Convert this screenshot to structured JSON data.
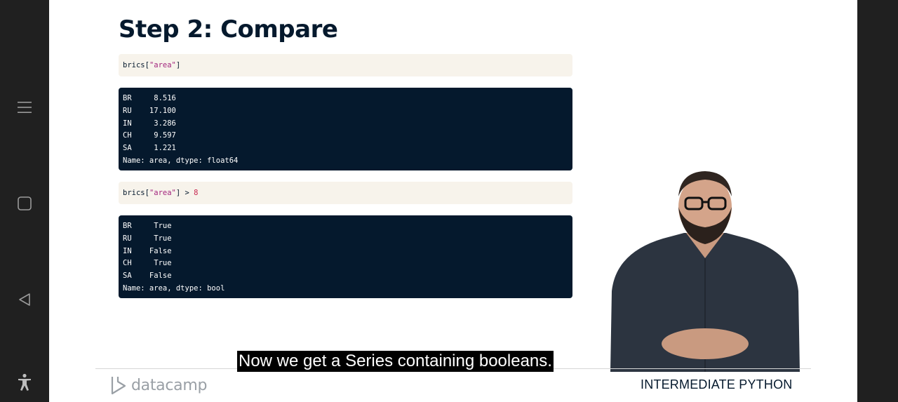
{
  "slide": {
    "title": "Step 2: Compare",
    "code_blocks": [
      {
        "input": {
          "prefix": "brics[",
          "string": "\"area\"",
          "suffix": "]"
        },
        "output_lines": [
          "BR     8.516",
          "RU    17.100",
          "IN     3.286",
          "CH     9.597",
          "SA     1.221",
          "Name: area, dtype: float64"
        ]
      },
      {
        "input": {
          "prefix": "brics[",
          "string": "\"area\"",
          "suffix": "] > ",
          "number": "8"
        },
        "output_lines": [
          "BR     True",
          "RU     True",
          "IN    False",
          "CH     True",
          "SA    False",
          "Name: area, dtype: bool"
        ]
      }
    ],
    "footer": {
      "logo_text": "datacamp",
      "course_name": "INTERMEDIATE PYTHON"
    }
  },
  "caption": "Now we get a Series containing booleans.",
  "navigation": {
    "buttons": [
      "menu-icon",
      "square-icon",
      "back-triangle-icon",
      "accessibility-icon"
    ]
  },
  "colors": {
    "title": "#05192d",
    "code_input_bg": "#f7f3eb",
    "code_output_bg": "#05192d",
    "string_token": "#a3257e"
  }
}
